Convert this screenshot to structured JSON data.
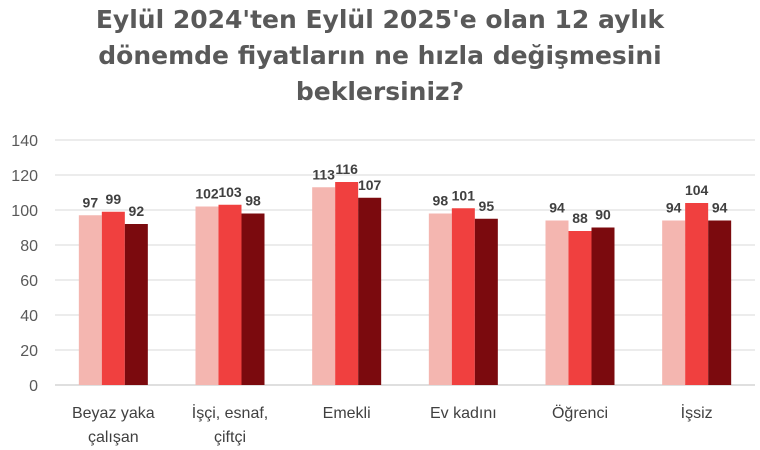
{
  "chart_data": {
    "type": "bar",
    "title_lines": [
      "Eylül 2024'ten Eylül 2025'e olan 12 aylık",
      "dönemde fiyatların ne hızla değişmesini",
      "beklersiniz?"
    ],
    "categories": [
      [
        "Beyaz yaka",
        "çalışan"
      ],
      [
        "İşçi, esnaf,",
        "çiftçi"
      ],
      [
        "Emekli"
      ],
      [
        "Ev kadını"
      ],
      [
        "Öğrenci"
      ],
      [
        "İşsiz"
      ]
    ],
    "series": [
      {
        "values": [
          97,
          102,
          113,
          98,
          94,
          94
        ],
        "color": "#f4b6b0"
      },
      {
        "values": [
          99,
          103,
          116,
          101,
          88,
          104
        ],
        "color": "#f0403f"
      },
      {
        "values": [
          92,
          98,
          107,
          95,
          90,
          94
        ],
        "color": "#7b0a0e"
      }
    ],
    "ylim": [
      0,
      140
    ],
    "yticks": [
      0,
      20,
      40,
      60,
      80,
      100,
      120,
      140
    ],
    "grid": true,
    "legend": "none"
  }
}
